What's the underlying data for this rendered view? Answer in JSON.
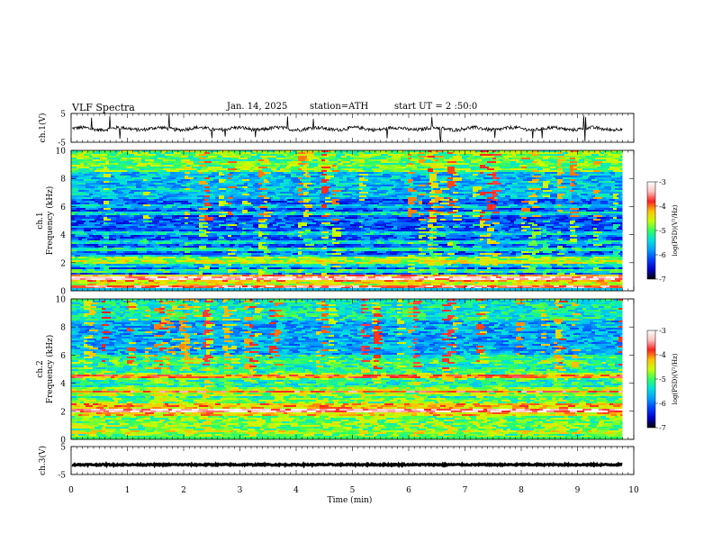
{
  "header": {
    "title": "VLF Spectra",
    "date": "Jan. 14, 2025",
    "station": "station=ATH",
    "start": "start UT =  2 :50:0"
  },
  "colors": {
    "colormap": [
      "#000000",
      "#0000c8",
      "#0040ff",
      "#00a0ff",
      "#00e0e0",
      "#30ff60",
      "#c8ff00",
      "#ffc000",
      "#ff2020",
      "#ffc0c0",
      "#ffffff"
    ]
  },
  "chart_data": [
    {
      "type": "line",
      "name": "ch1-waveform",
      "ylabel": "ch.1(V)",
      "ylim": [
        -5,
        5
      ],
      "yticks": [
        "5",
        "-5"
      ],
      "baseline": -0.3,
      "xlim": [
        0,
        10
      ],
      "data_until_min": 9.8
    },
    {
      "type": "heatmap",
      "name": "ch1-spectrogram",
      "ylabel": "ch.1 Frequency (kHz)",
      "ylim": [
        0,
        10
      ],
      "yticks": [
        "0",
        "2",
        "4",
        "6",
        "8",
        "10"
      ],
      "xlim": [
        0,
        10
      ],
      "colorbar": {
        "label": "log(PSD)(V²/Hz)",
        "ticks": [
          "-3",
          "-4",
          "-5",
          "-6",
          "-7"
        ],
        "range": [
          -7,
          -3
        ]
      },
      "bands_khz": [
        [
          0.3,
          -3.6
        ],
        [
          0.9,
          -3.3
        ],
        [
          1.4,
          -5.2
        ],
        [
          2.0,
          -4.6
        ],
        [
          2.3,
          -4.8
        ],
        [
          3.0,
          -5.3
        ],
        [
          3.5,
          -5.4
        ],
        [
          4.1,
          -5.5
        ],
        [
          5.5,
          -5.4
        ],
        [
          6.0,
          -5.6
        ]
      ]
    },
    {
      "type": "heatmap",
      "name": "ch2-spectrogram",
      "ylabel": "ch.2 Frequency (kHz)",
      "ylim": [
        0,
        10
      ],
      "yticks": [
        "0",
        "2",
        "4",
        "6",
        "8",
        "10"
      ],
      "xlim": [
        0,
        10
      ],
      "colorbar": {
        "label": "log(PSD)(V²/Hz)",
        "ticks": [
          "-3",
          "-4",
          "-5",
          "-6",
          "-7"
        ],
        "range": [
          -7,
          -3
        ]
      },
      "bands_khz": [
        [
          0.5,
          -4.6
        ],
        [
          1.0,
          -4.8
        ],
        [
          2.0,
          -3.4
        ],
        [
          2.4,
          -4.2
        ],
        [
          3.4,
          -3.8
        ],
        [
          4.5,
          -4.0
        ],
        [
          5.5,
          -5.0
        ],
        [
          6.5,
          -5.8
        ]
      ]
    },
    {
      "type": "line",
      "name": "ch3-waveform",
      "ylabel": "ch.3(V)",
      "ylim": [
        -5,
        5
      ],
      "yticks": [
        "5",
        "-5"
      ],
      "baseline": -1.5,
      "xlim": [
        0,
        10
      ],
      "data_until_min": 9.8
    }
  ],
  "xaxis": {
    "label": "Time (min)",
    "ticks": [
      "0",
      "1",
      "2",
      "3",
      "4",
      "5",
      "6",
      "7",
      "8",
      "9",
      "10"
    ]
  }
}
